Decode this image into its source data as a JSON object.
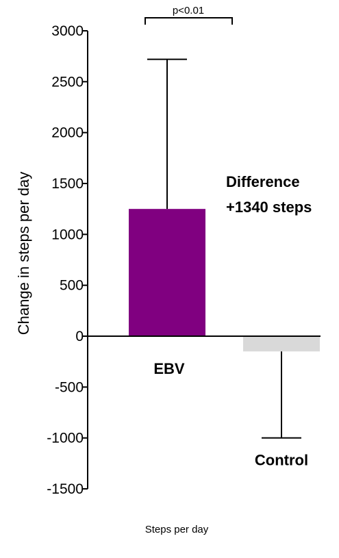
{
  "chart_data": {
    "type": "bar",
    "categories": [
      "EBV",
      "Control"
    ],
    "values": [
      1250,
      -150
    ],
    "error_bars": [
      {
        "direction": "up",
        "value": 2720
      },
      {
        "direction": "down",
        "value": -1000
      }
    ],
    "colors": [
      "#800080",
      "#d9d9d9"
    ],
    "ylabel": "Change in steps per day",
    "xlabel": "Steps per day",
    "ylim": [
      -1500,
      3000
    ],
    "yticks": [
      -1500,
      -1000,
      -500,
      0,
      500,
      1000,
      1500,
      2000,
      2500,
      3000
    ],
    "ytick_labels": [
      "-1500",
      "-1000",
      "-500",
      "0",
      "500",
      "1000",
      "1500",
      "2000",
      "2500",
      "3000"
    ],
    "significance": "p<0.01",
    "annotation": [
      "Difference",
      "+1340 steps"
    ],
    "grid": false
  }
}
